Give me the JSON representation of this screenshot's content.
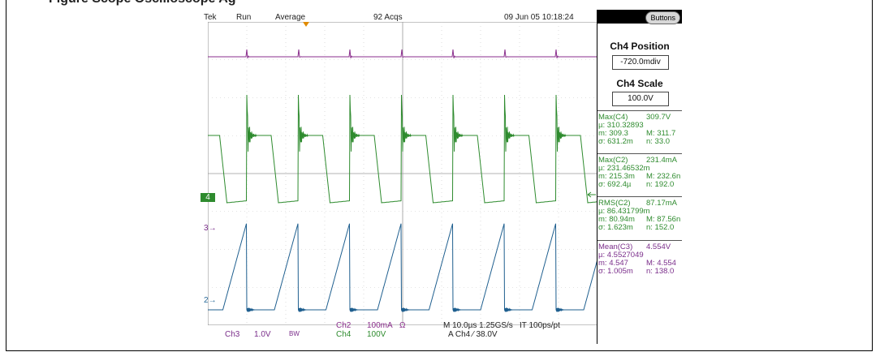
{
  "window": {
    "clipped_title": "Figure   Scope   Oscilloscope   Ag"
  },
  "status_bar": {
    "brand": "Tek",
    "run_state": "Run",
    "mode": "Average",
    "acquisitions": "92 Acqs",
    "datetime": "09 Jun 05 10:18:24"
  },
  "channel_markers": {
    "ch4": "4",
    "ch3": "3",
    "ch2": "2"
  },
  "bottom_bar": {
    "ch3_name": "Ch3",
    "ch3_scale": "1.0V",
    "bw_marker": "BW",
    "ch2_name": "Ch2",
    "ch2_scale": "100mA",
    "ch2_unit": "Ω",
    "ch4_name": "Ch4",
    "ch4_scale": "100V",
    "horizontal": "M 10.0µs 1.25GS/s",
    "resolution": "IT 100ps/pt",
    "trigger": "A  Ch4  ⁄  38.0V"
  },
  "side_panel": {
    "buttons_label": "Buttons",
    "position_title": "Ch4 Position",
    "position_value": "-720.0mdiv",
    "scale_title": "Ch4 Scale",
    "scale_value": "100.0V",
    "measurements": [
      {
        "name": "Max(C4)",
        "value": "309.7V",
        "mu": "µ: 310.32893",
        "m": "m: 309.3",
        "M": "M: 311.7",
        "sigma": "σ: 631.2m",
        "n": "n: 33.0",
        "color": "#2e8b2e"
      },
      {
        "name": "Max(C2)",
        "value": "231.4mA",
        "mu": "µ: 231.46532m",
        "m": "m: 215.3m",
        "M": "M: 232.6n",
        "sigma": "σ: 692.4µ",
        "n": "n: 192.0",
        "color": "#2e8b2e"
      },
      {
        "name": "RMS(C2)",
        "value": "87.17mA",
        "mu": "µ: 86.431799m",
        "m": "m: 80.94m",
        "M": "M: 87.56n",
        "sigma": "σ: 1.623m",
        "n": "n: 152.0",
        "color": "#2e8b2e"
      },
      {
        "name": "Mean(C3)",
        "value": "4.554V",
        "mu": "µ: 4.5527049",
        "m": "m: 4.547",
        "M": "M: 4.554",
        "sigma": "σ: 1.005m",
        "n": "n: 138.0",
        "color": "#7a2d8a"
      }
    ]
  },
  "colors": {
    "ch3": "#8a2e8c",
    "ch4": "#2e8b2e",
    "ch2": "#1f5f8f",
    "trigger": "#e08a00"
  }
}
